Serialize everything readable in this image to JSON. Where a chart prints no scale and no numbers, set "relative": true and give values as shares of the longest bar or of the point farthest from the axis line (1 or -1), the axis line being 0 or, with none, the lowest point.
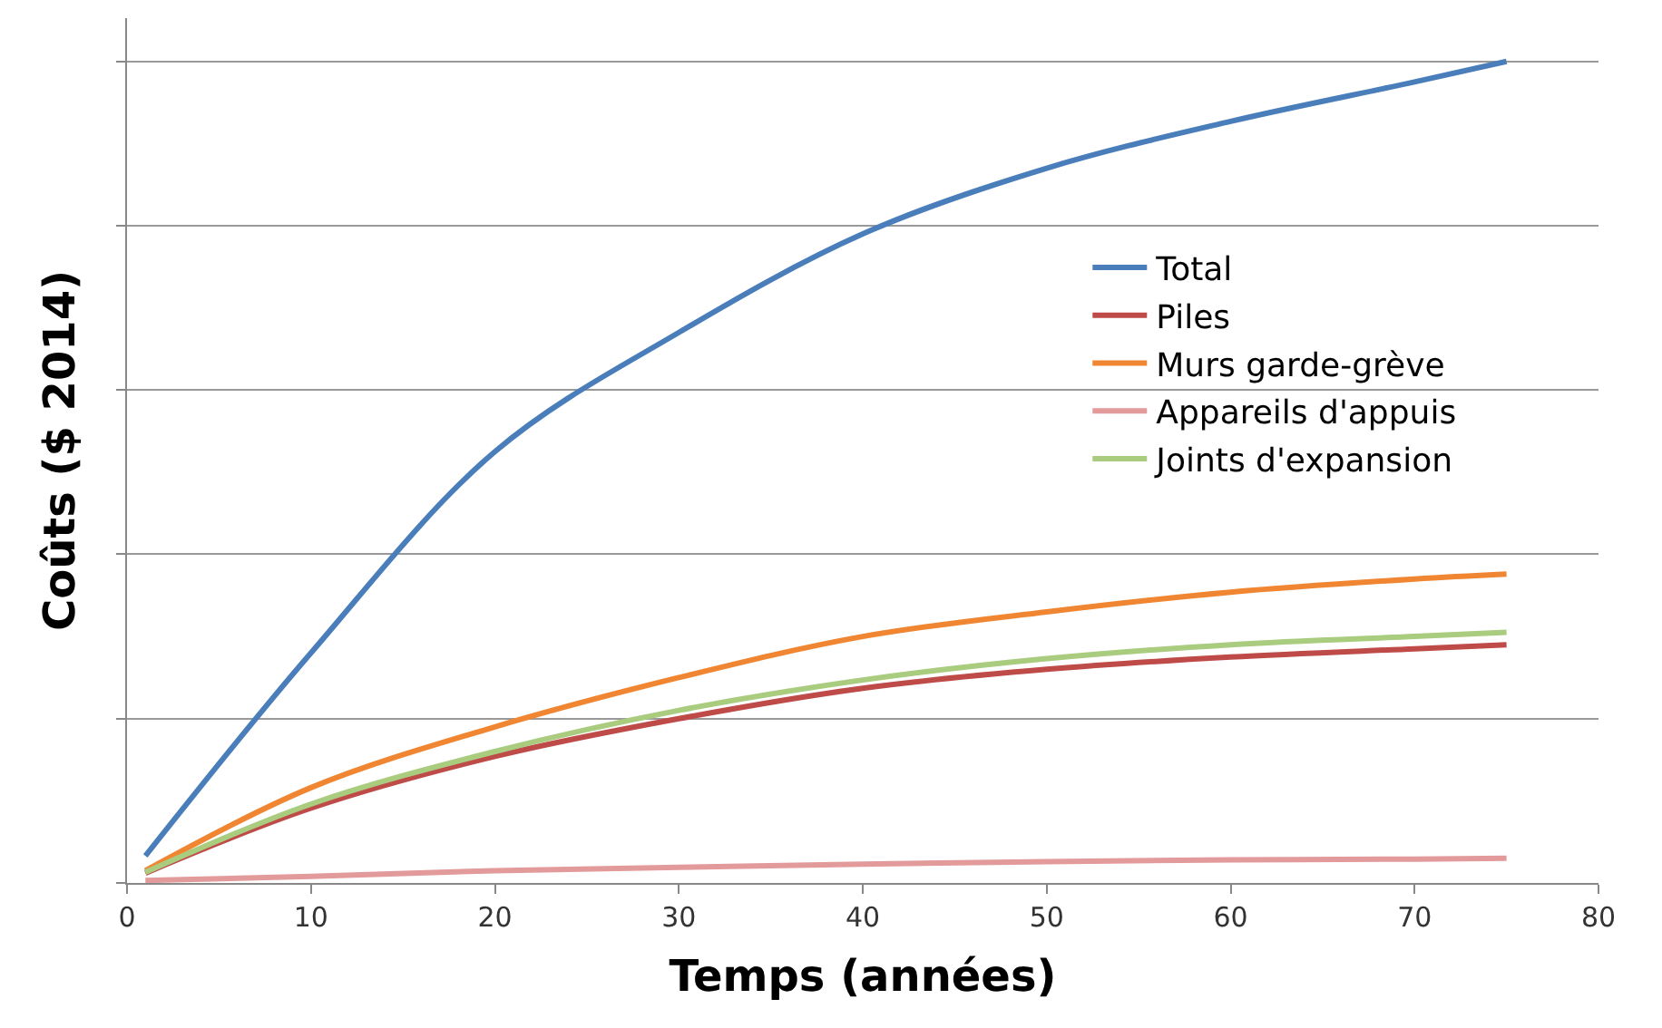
{
  "chart_data": {
    "type": "line",
    "relative": true,
    "xlabel": "Temps (années)",
    "ylabel": "Coûts ($ 2014)",
    "x": [
      1,
      10,
      20,
      30,
      40,
      50,
      60,
      70,
      75
    ],
    "xlim": [
      0,
      80
    ],
    "xticks": [
      0,
      10,
      20,
      30,
      40,
      50,
      60,
      70,
      80
    ],
    "grid": "y",
    "legend": "right",
    "marker": "none",
    "line_style": "solid",
    "series": [
      {
        "name": "Total",
        "color": "#4a7ebb",
        "values": [
          0.033,
          0.28,
          0.525,
          0.67,
          0.79,
          0.87,
          0.927,
          0.975,
          1.0
        ]
      },
      {
        "name": "Piles",
        "color": "#be4b48",
        "values": [
          0.012,
          0.091,
          0.154,
          0.2,
          0.237,
          0.26,
          0.275,
          0.285,
          0.29
        ]
      },
      {
        "name": "Murs garde-grève",
        "color": "#f08632",
        "values": [
          0.015,
          0.116,
          0.19,
          0.25,
          0.3,
          0.33,
          0.354,
          0.37,
          0.376
        ]
      },
      {
        "name": "Appareils d'appuis",
        "color": "#e39a9a",
        "values": [
          0.003,
          0.008,
          0.015,
          0.019,
          0.023,
          0.026,
          0.028,
          0.029,
          0.03
        ]
      },
      {
        "name": "Joints d'expansion",
        "color": "#a9cc7f",
        "values": [
          0.013,
          0.096,
          0.16,
          0.21,
          0.247,
          0.273,
          0.29,
          0.3,
          0.305
        ]
      }
    ]
  }
}
